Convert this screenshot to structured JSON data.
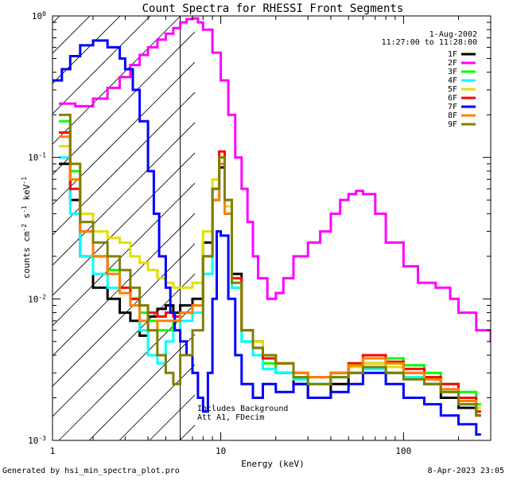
{
  "chart_data": {
    "type": "line",
    "title": "Count Spectra for RHESSI Front Segments",
    "xlabel": "Energy (keV)",
    "ylabel_main": "counts cm",
    "ylabel_exp1": "-2",
    "ylabel_mid": " s",
    "ylabel_exp2": "-1",
    "ylabel_end": " keV",
    "ylabel_exp3": "-1",
    "x_scale": "log",
    "y_scale": "log",
    "xlim": [
      1.2,
      300
    ],
    "ylim": [
      0.001,
      1.0
    ],
    "x_tick_labels": [
      {
        "value": 1,
        "label": "1"
      },
      {
        "value": 10,
        "label": "10"
      },
      {
        "value": 100,
        "label": "100"
      }
    ],
    "y_tick_labels": [
      {
        "value": 1,
        "base": "10",
        "exp": "0"
      },
      {
        "value": 0.1,
        "base": "10",
        "exp": "-1"
      },
      {
        "value": 0.01,
        "base": "10",
        "exp": "-2"
      },
      {
        "value": 0.001,
        "base": "10",
        "exp": "-3"
      }
    ],
    "date": "1-Aug-2002",
    "time_range": "11:27:00 to 11:28:00",
    "annotation_line1": "Includes Background",
    "annotation_line2": "Att A1, FDecim",
    "vertical_marker_energy": 6,
    "hatch_region": [
      1.2,
      6
    ],
    "grid": false,
    "legend_position": "top-right",
    "series": [
      {
        "name": "1F",
        "color": "#000000",
        "x": [
          1.3,
          1.5,
          1.7,
          2.0,
          2.4,
          2.8,
          3.2,
          3.6,
          4.0,
          4.5,
          5.0,
          5.5,
          6.0,
          7.0,
          8.0,
          9.0,
          9.8,
          10.5,
          11.5,
          13,
          15,
          17,
          20,
          25,
          30,
          40,
          50,
          60,
          80,
          100,
          130,
          160,
          200,
          250
        ],
        "y": [
          0.09,
          0.05,
          0.02,
          0.012,
          0.01,
          0.008,
          0.007,
          0.0055,
          0.0075,
          0.0085,
          0.009,
          0.008,
          0.009,
          0.01,
          0.025,
          0.05,
          0.085,
          0.04,
          0.015,
          0.006,
          0.005,
          0.004,
          0.003,
          0.0025,
          0.002,
          0.0025,
          0.003,
          0.0035,
          0.003,
          0.003,
          0.0025,
          0.002,
          0.0017,
          0.0015
        ]
      },
      {
        "name": "2F",
        "color": "#ff00ff",
        "x": [
          1.3,
          1.6,
          2.0,
          2.4,
          2.8,
          3.2,
          3.6,
          4.0,
          4.5,
          5.0,
          5.5,
          6.0,
          6.5,
          7.0,
          7.5,
          8.0,
          9.0,
          10.0,
          11.0,
          12.0,
          13.0,
          14.0,
          15.0,
          16.0,
          18.0,
          20.0,
          22.0,
          25.0,
          30.0,
          35.0,
          40.0,
          45.0,
          50.0,
          55.0,
          60.0,
          70.0,
          80.0,
          100.0,
          120.0,
          150.0,
          180.0,
          200.0,
          250.0,
          300.0
        ],
        "y": [
          0.24,
          0.23,
          0.26,
          0.31,
          0.37,
          0.45,
          0.53,
          0.6,
          0.68,
          0.75,
          0.82,
          0.9,
          0.95,
          0.96,
          0.9,
          0.8,
          0.55,
          0.35,
          0.2,
          0.1,
          0.06,
          0.035,
          0.02,
          0.014,
          0.01,
          0.011,
          0.014,
          0.02,
          0.025,
          0.03,
          0.04,
          0.05,
          0.055,
          0.058,
          0.055,
          0.04,
          0.025,
          0.017,
          0.013,
          0.012,
          0.01,
          0.008,
          0.006,
          0.005
        ]
      },
      {
        "name": "3F",
        "color": "#00ff00",
        "x": [
          1.3,
          1.5,
          1.7,
          2.0,
          2.4,
          2.8,
          3.2,
          3.6,
          4.0,
          4.5,
          5.0,
          5.5,
          6.0,
          7.0,
          8.0,
          9.0,
          9.8,
          10.5,
          11.5,
          13,
          15,
          17,
          20,
          25,
          30,
          40,
          50,
          60,
          80,
          100,
          130,
          160,
          200,
          250
        ],
        "y": [
          0.18,
          0.08,
          0.03,
          0.02,
          0.016,
          0.012,
          0.01,
          0.008,
          0.007,
          0.006,
          0.006,
          0.007,
          0.008,
          0.009,
          0.02,
          0.06,
          0.1,
          0.05,
          0.012,
          0.005,
          0.004,
          0.0035,
          0.003,
          0.0028,
          0.0025,
          0.003,
          0.0035,
          0.004,
          0.0038,
          0.0034,
          0.003,
          0.0025,
          0.0022,
          0.0018
        ]
      },
      {
        "name": "4F",
        "color": "#00ffff",
        "x": [
          1.3,
          1.5,
          1.7,
          2.0,
          2.4,
          2.8,
          3.2,
          3.6,
          4.0,
          4.5,
          5.0,
          5.5,
          6.0,
          7.0,
          8.0,
          9.0,
          9.8,
          10.5,
          11.5,
          13,
          15,
          17,
          20,
          25,
          30,
          40,
          50,
          60,
          80,
          100,
          130,
          160,
          200,
          250
        ],
        "y": [
          0.1,
          0.04,
          0.02,
          0.015,
          0.012,
          0.011,
          0.009,
          0.006,
          0.004,
          0.0035,
          0.005,
          0.006,
          0.007,
          0.008,
          0.015,
          0.05,
          0.09,
          0.04,
          0.012,
          0.005,
          0.004,
          0.0032,
          0.003,
          0.0027,
          0.0025,
          0.0028,
          0.003,
          0.0032,
          0.003,
          0.0028,
          0.0025,
          0.0022,
          0.0018,
          0.0015
        ]
      },
      {
        "name": "5F",
        "color": "#e0e000",
        "x": [
          1.3,
          1.5,
          1.7,
          2.0,
          2.4,
          2.8,
          3.2,
          3.6,
          4.0,
          4.5,
          5.0,
          5.5,
          6.0,
          7.0,
          8.0,
          9.0,
          9.8,
          10.5,
          11.5,
          13,
          15,
          17,
          20,
          25,
          30,
          40,
          50,
          60,
          80,
          100,
          130,
          160,
          200,
          250
        ],
        "y": [
          0.12,
          0.07,
          0.04,
          0.03,
          0.027,
          0.025,
          0.02,
          0.018,
          0.016,
          0.014,
          0.013,
          0.012,
          0.012,
          0.013,
          0.03,
          0.07,
          0.1,
          0.045,
          0.014,
          0.006,
          0.005,
          0.004,
          0.0035,
          0.003,
          0.0028,
          0.003,
          0.0033,
          0.0035,
          0.0033,
          0.003,
          0.0028,
          0.0025,
          0.002,
          0.0017
        ]
      },
      {
        "name": "6F",
        "color": "#ff0000",
        "x": [
          1.3,
          1.5,
          1.7,
          2.0,
          2.4,
          2.8,
          3.2,
          3.6,
          4.0,
          4.5,
          5.0,
          5.5,
          6.0,
          7.0,
          8.0,
          9.0,
          9.8,
          10.5,
          11.5,
          13,
          15,
          17,
          20,
          25,
          30,
          40,
          50,
          60,
          80,
          100,
          130,
          160,
          200,
          250
        ],
        "y": [
          0.15,
          0.06,
          0.03,
          0.02,
          0.015,
          0.012,
          0.01,
          0.009,
          0.008,
          0.0075,
          0.008,
          0.0075,
          0.008,
          0.009,
          0.02,
          0.06,
          0.11,
          0.05,
          0.014,
          0.006,
          0.0045,
          0.0038,
          0.0035,
          0.003,
          0.0028,
          0.003,
          0.0035,
          0.004,
          0.0036,
          0.0032,
          0.0028,
          0.0025,
          0.002,
          0.0016
        ]
      },
      {
        "name": "7F",
        "color": "#0000ff",
        "x": [
          1.2,
          1.35,
          1.5,
          1.7,
          2.0,
          2.4,
          2.8,
          3.0,
          3.3,
          3.6,
          4.0,
          4.3,
          4.6,
          5.0,
          5.3,
          5.6,
          6.0,
          6.5,
          7.0,
          7.5,
          8.0,
          8.5,
          9.0,
          9.5,
          10.0,
          11.0,
          12.0,
          13.0,
          15,
          17,
          20,
          25,
          30,
          40,
          50,
          60,
          80,
          100,
          130,
          160,
          200,
          250
        ],
        "y": [
          0.35,
          0.42,
          0.52,
          0.62,
          0.67,
          0.6,
          0.5,
          0.42,
          0.3,
          0.18,
          0.08,
          0.04,
          0.02,
          0.012,
          0.008,
          0.006,
          0.005,
          0.004,
          0.003,
          0.002,
          0.0016,
          0.003,
          0.01,
          0.03,
          0.028,
          0.01,
          0.004,
          0.0025,
          0.002,
          0.0025,
          0.0022,
          0.0025,
          0.002,
          0.0022,
          0.0025,
          0.003,
          0.0025,
          0.002,
          0.0018,
          0.0015,
          0.0013,
          0.0011
        ]
      },
      {
        "name": "8F",
        "color": "#ff8000",
        "x": [
          1.3,
          1.5,
          1.7,
          2.0,
          2.4,
          2.8,
          3.2,
          3.6,
          4.0,
          4.5,
          5.0,
          5.5,
          6.0,
          7.0,
          8.0,
          9.0,
          9.8,
          10.5,
          11.5,
          13,
          15,
          17,
          20,
          25,
          30,
          40,
          50,
          60,
          80,
          100,
          130,
          160,
          200,
          250
        ],
        "y": [
          0.14,
          0.07,
          0.03,
          0.02,
          0.015,
          0.011,
          0.009,
          0.007,
          0.006,
          0.007,
          0.007,
          0.007,
          0.008,
          0.009,
          0.02,
          0.05,
          0.09,
          0.04,
          0.013,
          0.006,
          0.0045,
          0.004,
          0.0035,
          0.003,
          0.0028,
          0.003,
          0.0034,
          0.0038,
          0.0035,
          0.003,
          0.0027,
          0.0023,
          0.0019,
          0.0015
        ]
      },
      {
        "name": "9F",
        "color": "#808000",
        "x": [
          1.3,
          1.5,
          1.7,
          2.0,
          2.4,
          2.8,
          3.2,
          3.6,
          4.0,
          4.5,
          5.0,
          5.5,
          6.0,
          7.0,
          8.0,
          9.0,
          9.8,
          10.5,
          11.5,
          13,
          15,
          17,
          20,
          25,
          30,
          40,
          50,
          60,
          80,
          100,
          130,
          160,
          200,
          250
        ],
        "y": [
          0.2,
          0.09,
          0.035,
          0.025,
          0.02,
          0.016,
          0.012,
          0.009,
          0.006,
          0.004,
          0.003,
          0.0025,
          0.004,
          0.006,
          0.02,
          0.06,
          0.1,
          0.05,
          0.013,
          0.006,
          0.0045,
          0.004,
          0.0035,
          0.0028,
          0.0025,
          0.0028,
          0.003,
          0.0033,
          0.003,
          0.0027,
          0.0025,
          0.0022,
          0.0018,
          0.0015
        ]
      }
    ]
  },
  "footer": {
    "left": "Generated by hsi_min_spectra_plot.pro",
    "right": "8-Apr-2023 23:05"
  }
}
